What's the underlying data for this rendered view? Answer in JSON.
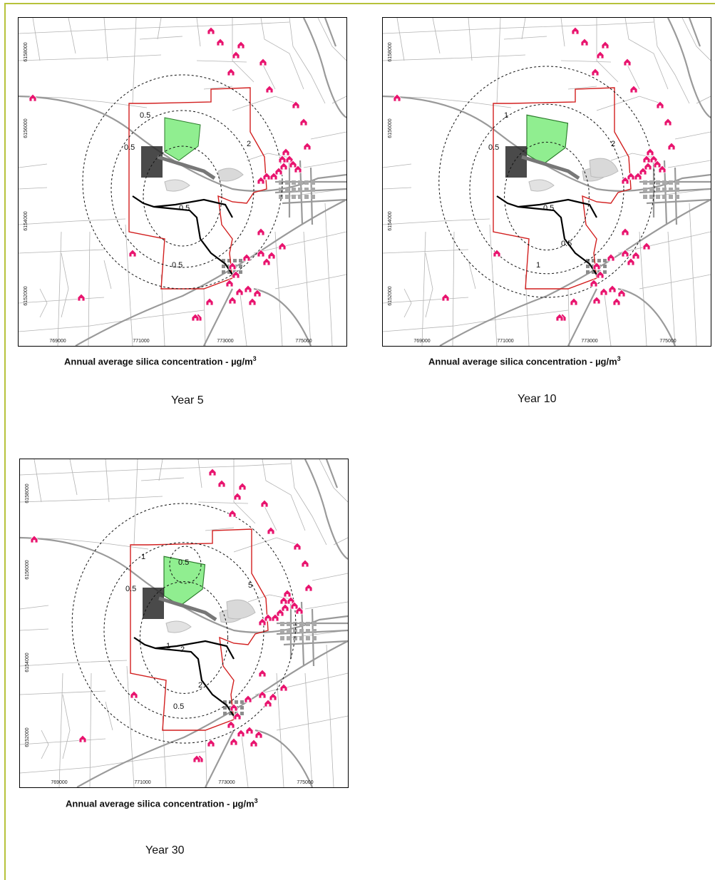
{
  "panels": [
    {
      "id": "year5",
      "caption_text": "Annual average silica concentration  - µg/m",
      "caption_sup": "3",
      "year_label": "Year 5",
      "x_ticks": [
        "769000",
        "771000",
        "773000",
        "775000"
      ],
      "y_ticks": [
        "6158000",
        "6156000",
        "6154000",
        "6152000"
      ],
      "contour_labels": [
        "0.5",
        "0.5",
        "0.5",
        "2",
        "0.5"
      ]
    },
    {
      "id": "year10",
      "caption_text": "Annual average silica concentration  - µg/m",
      "caption_sup": "3",
      "year_label": "Year 10",
      "x_ticks": [
        "769000",
        "771000",
        "773000",
        "775000"
      ],
      "y_ticks": [
        "6158000",
        "6156000",
        "6154000",
        "6152000"
      ],
      "contour_labels": [
        "0.5",
        "1",
        "0.5",
        "2",
        "1",
        "0.5"
      ]
    },
    {
      "id": "year30",
      "caption_text": "Annual average silica concentration  - µg/m",
      "caption_sup": "3",
      "year_label": "Year 30",
      "x_ticks": [
        "769000",
        "771000",
        "773000",
        "775000"
      ],
      "y_ticks": [
        "6158000",
        "6156000",
        "6154000",
        "6152000"
      ],
      "contour_labels": [
        "0.5",
        "1",
        "2",
        "5",
        "0.5",
        "2",
        "1",
        "0.5"
      ]
    }
  ],
  "colors": {
    "frame": "#b7c23b",
    "pit": "#90ee90",
    "boundary": "#d21f1f",
    "receptor": "#e8146e",
    "roads": "#9a9a9a",
    "contour": "#111111"
  },
  "icons": [
    "receptor-house-icon"
  ]
}
